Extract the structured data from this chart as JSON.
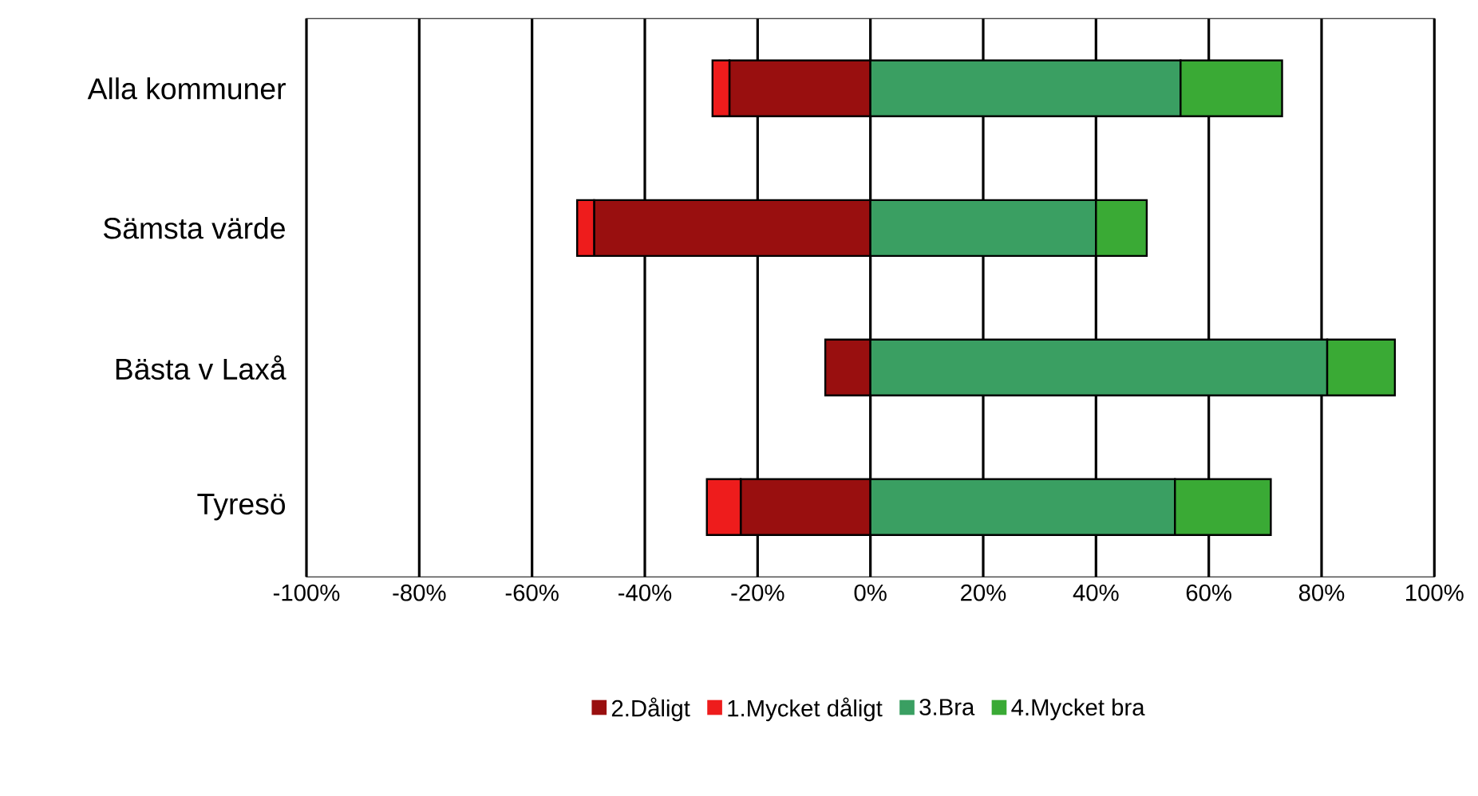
{
  "chart_data": {
    "type": "bar",
    "orientation": "horizontal",
    "stacked": true,
    "categories": [
      "Alla kommuner",
      "Sämsta värde",
      "Bästa v Laxå",
      "Tyresö"
    ],
    "series": [
      {
        "name": "2.Dåligt",
        "color": "#990f0f",
        "values": [
          -25,
          -49,
          -8,
          -23
        ]
      },
      {
        "name": "1.Mycket dåligt",
        "color": "#ee1c1c",
        "values": [
          -3,
          -3,
          0,
          -6
        ]
      },
      {
        "name": "3.Bra",
        "color": "#3a9f62",
        "values": [
          55,
          40,
          81,
          54
        ]
      },
      {
        "name": "4.Mycket bra",
        "color": "#3aaa35",
        "values": [
          18,
          9,
          12,
          17
        ]
      }
    ],
    "xlim": [
      -100,
      100
    ],
    "xticks": [
      {
        "value": -100,
        "label": "-100%"
      },
      {
        "value": -80,
        "label": "-80%"
      },
      {
        "value": -60,
        "label": "-60%"
      },
      {
        "value": -40,
        "label": "-40%"
      },
      {
        "value": -20,
        "label": "-20%"
      },
      {
        "value": 0,
        "label": "0%"
      },
      {
        "value": 20,
        "label": "20%"
      },
      {
        "value": 40,
        "label": "40%"
      },
      {
        "value": 60,
        "label": "60%"
      },
      {
        "value": 80,
        "label": "80%"
      },
      {
        "value": 100,
        "label": "100%"
      }
    ],
    "grid": "x",
    "legend": "bottom"
  }
}
